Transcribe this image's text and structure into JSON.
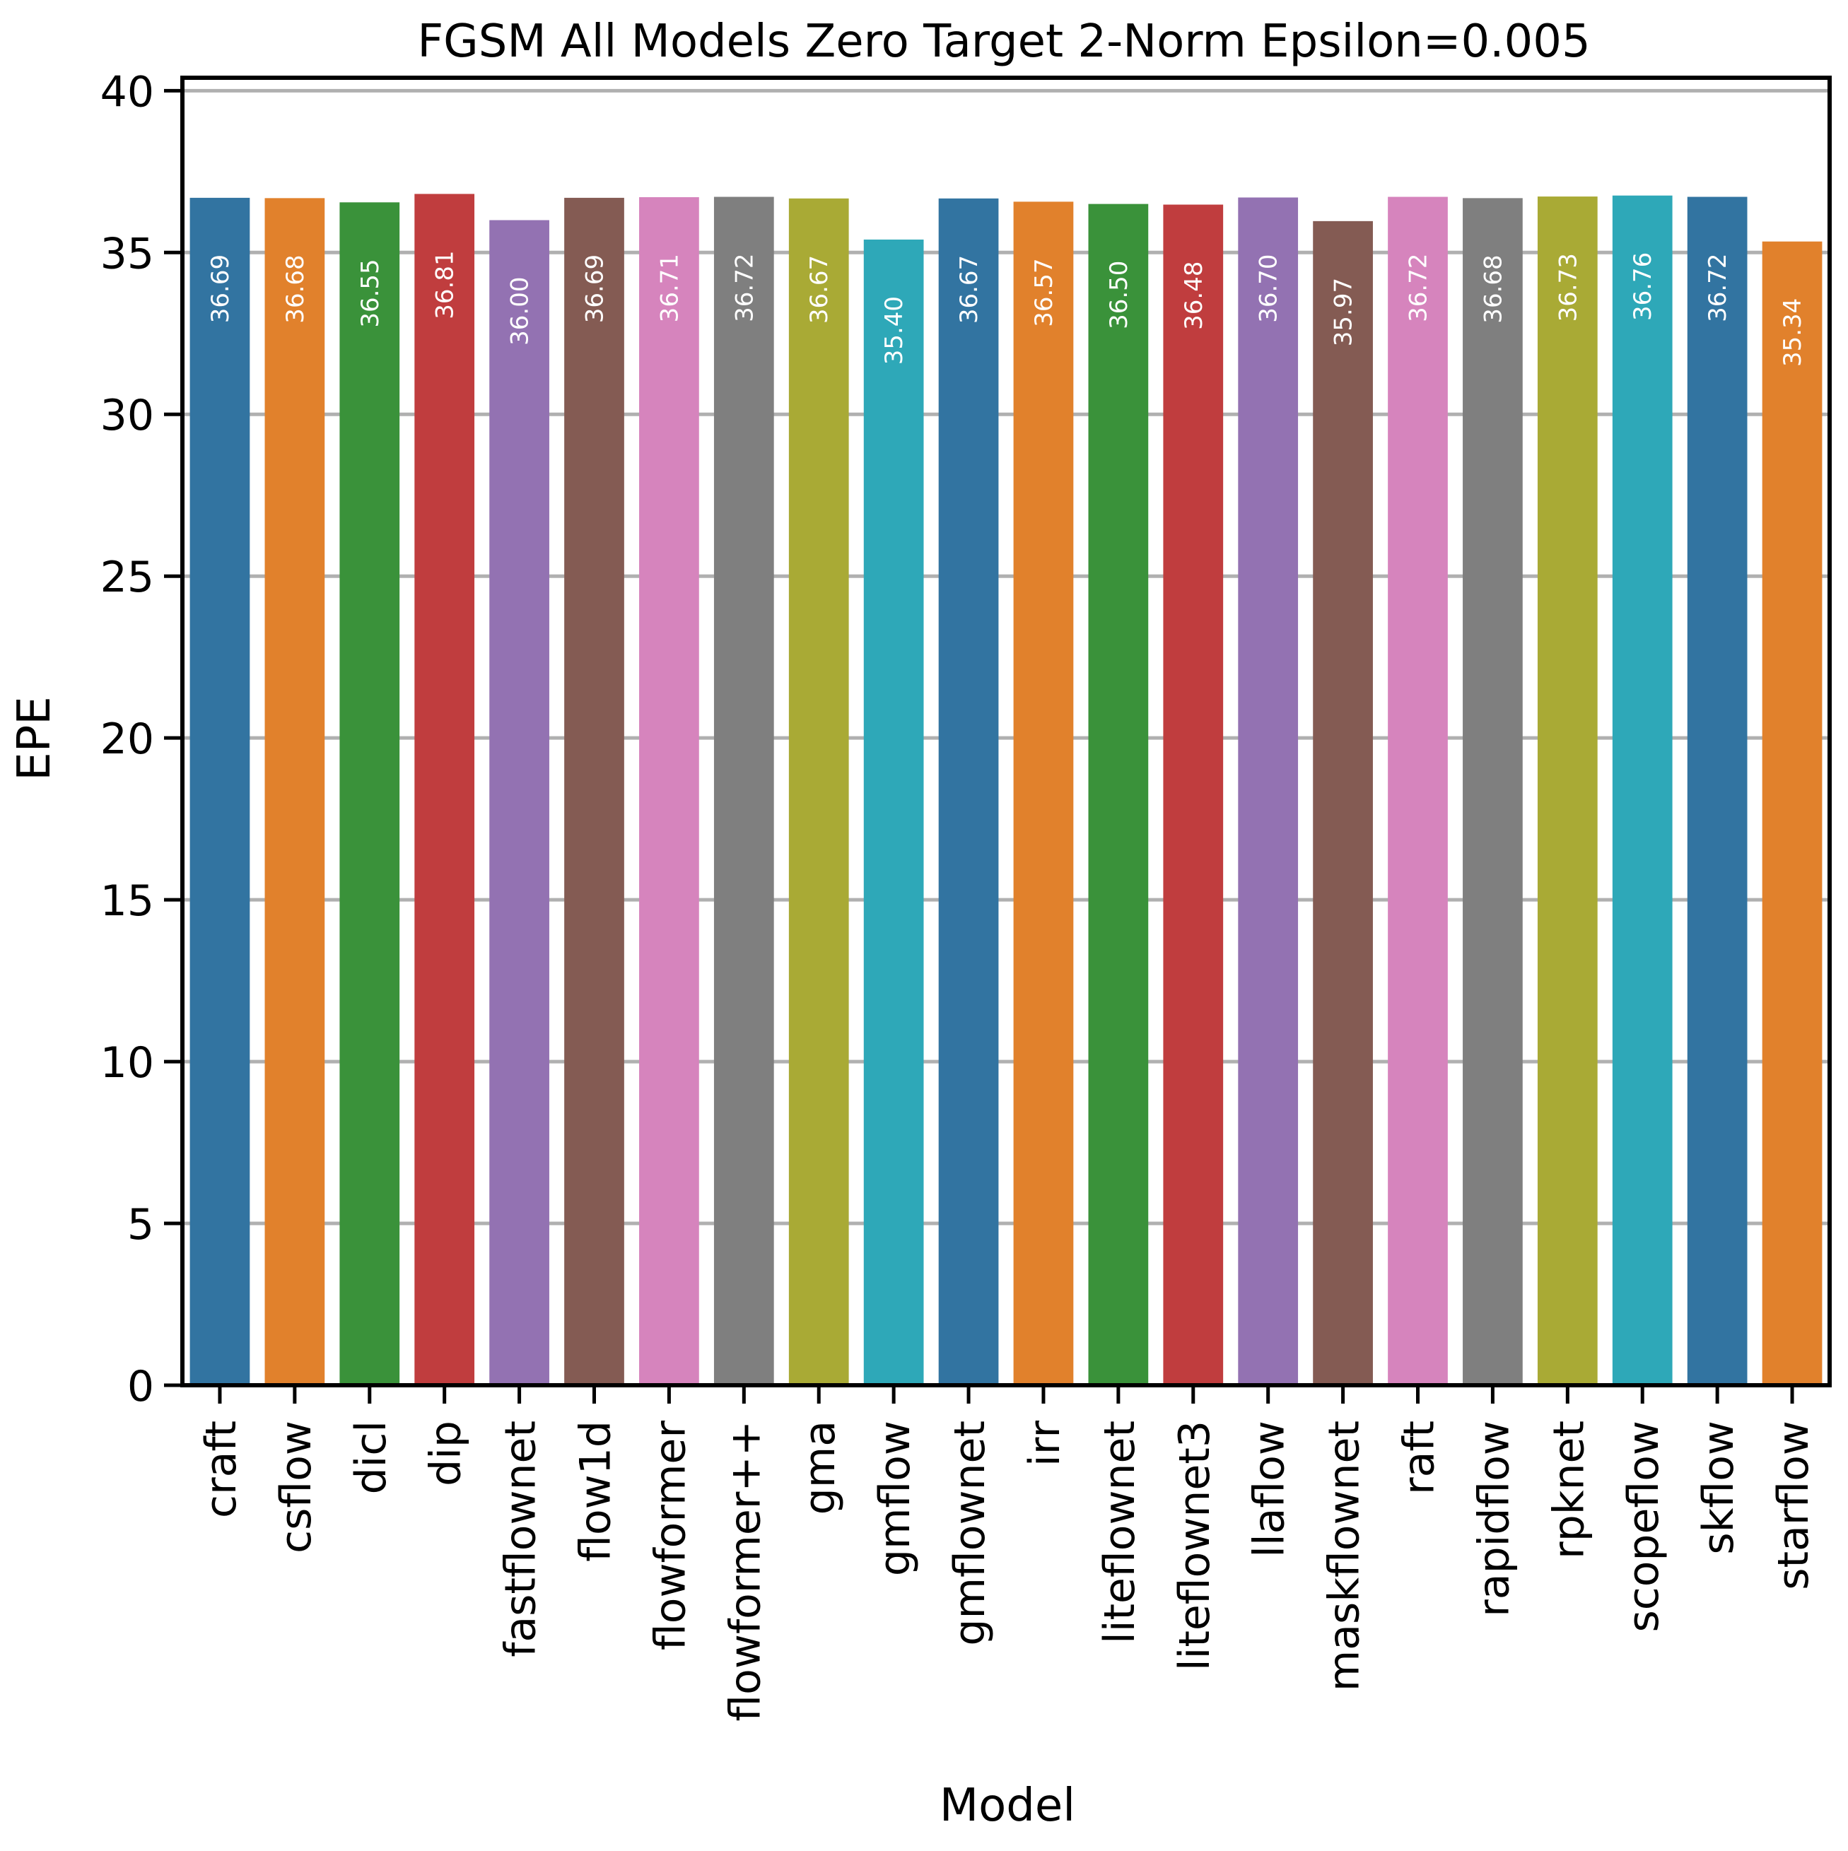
{
  "chart_data": {
    "type": "bar",
    "title": "FGSM All Models Zero Target 2-Norm Epsilon=0.005",
    "xlabel": "Model",
    "ylabel": "EPE",
    "ylim": [
      0,
      40.4
    ],
    "yticks": [
      0,
      5,
      10,
      15,
      20,
      25,
      30,
      35,
      40
    ],
    "grid": "horizontal",
    "categories": [
      "craft",
      "csflow",
      "dicl",
      "dip",
      "fastflownet",
      "flow1d",
      "flowformer",
      "flowformer++",
      "gma",
      "gmflow",
      "gmflownet",
      "irr",
      "liteflownet",
      "liteflownet3",
      "llaflow",
      "maskflownet",
      "raft",
      "rapidflow",
      "rpknet",
      "scopeflow",
      "skflow",
      "starflow"
    ],
    "values": [
      36.69,
      36.68,
      36.55,
      36.81,
      36.0,
      36.69,
      36.71,
      36.72,
      36.67,
      35.4,
      36.67,
      36.57,
      36.5,
      36.48,
      36.7,
      35.97,
      36.72,
      36.68,
      36.73,
      36.76,
      36.72,
      35.34
    ],
    "value_labels": [
      "36.69",
      "36.68",
      "36.55",
      "36.81",
      "36.00",
      "36.69",
      "36.71",
      "36.72",
      "36.67",
      "35.40",
      "36.67",
      "36.57",
      "36.50",
      "36.48",
      "36.70",
      "35.97",
      "36.72",
      "36.68",
      "36.73",
      "36.76",
      "36.72",
      "35.34"
    ],
    "colors": [
      "#3274a1",
      "#e1812c",
      "#3a923a",
      "#c03d3e",
      "#9372b2",
      "#845b53",
      "#d684bd",
      "#7f7f7f",
      "#a9aa35",
      "#2ea8b8"
    ]
  }
}
